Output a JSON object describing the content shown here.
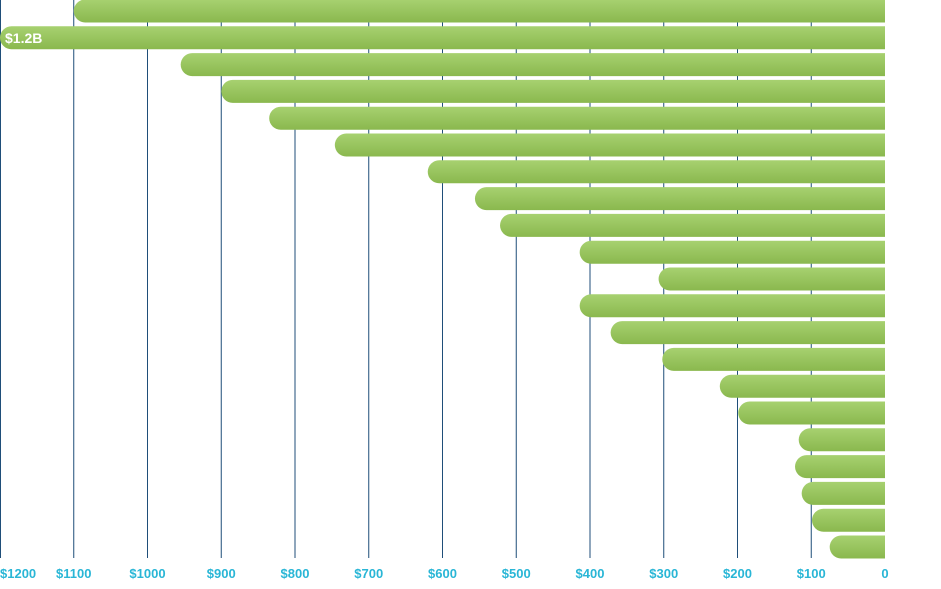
{
  "chart_data": {
    "type": "bar",
    "orientation": "horizontal",
    "x_direction": "reversed",
    "title": "",
    "xlabel": "",
    "ylabel": "",
    "xlim": [
      0,
      1200
    ],
    "tick_values": [
      1200,
      1100,
      1000,
      900,
      800,
      700,
      600,
      500,
      400,
      300,
      200,
      100,
      0
    ],
    "tick_labels": [
      "$1200",
      "$1100",
      "$1000",
      "$900",
      "$800",
      "$700",
      "$600",
      "$500",
      "$400",
      "$300",
      "$200",
      "$100",
      "0"
    ],
    "values": [
      1100,
      1200,
      955,
      900,
      835,
      746,
      620,
      556,
      522,
      414,
      307,
      414,
      372,
      302,
      224,
      199,
      117,
      122,
      113,
      99,
      75
    ],
    "data_labels": [
      {
        "index": 1,
        "text": "$1.2B"
      }
    ],
    "grid": true,
    "legend": "none",
    "colors": {
      "bar_light": "#a7d170",
      "bar_dark": "#8ab84e",
      "gridline": "#1f4e79",
      "tick_text": "#29b6d6",
      "data_label": "#ffffff"
    }
  }
}
